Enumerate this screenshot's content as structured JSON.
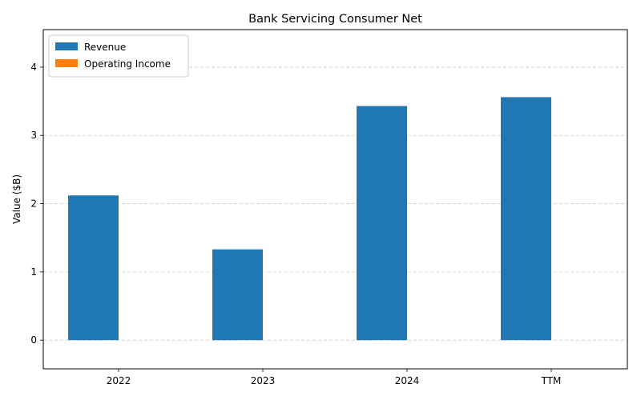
{
  "chart_data": {
    "type": "bar",
    "title": "Bank Servicing Consumer Net",
    "xlabel": "",
    "ylabel": "Value ($B)",
    "categories": [
      "2022",
      "2023",
      "2024",
      "TTM"
    ],
    "series": [
      {
        "name": "Revenue",
        "color": "#1f77b4",
        "values": [
          2.12,
          1.33,
          3.43,
          3.56
        ]
      },
      {
        "name": "Operating Income",
        "color": "#ff7f0e",
        "values": [
          0,
          0,
          0,
          0
        ]
      }
    ],
    "ylim": [
      -0.42,
      4.55
    ],
    "yticks": [
      0,
      1,
      2,
      3,
      4
    ],
    "grid": true,
    "legend_position": "top-left"
  }
}
